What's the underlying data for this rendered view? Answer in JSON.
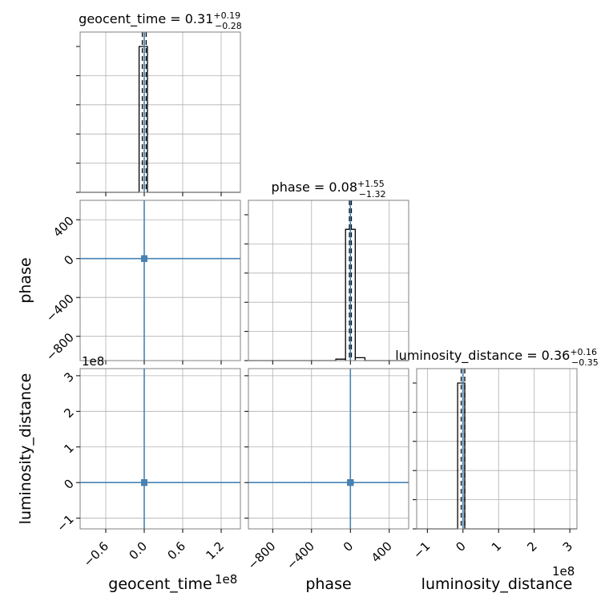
{
  "chart_data": {
    "type": "scatter",
    "kind": "corner-plot",
    "parameters": [
      "geocent_time",
      "phase",
      "luminosity_distance"
    ],
    "axis_labels": [
      "geocent_time",
      "phase",
      "luminosity_distance"
    ],
    "titles": [
      {
        "param": "geocent_time",
        "text": "geocent_time = 0.31",
        "upper": "+0.19",
        "lower": "−0.28"
      },
      {
        "param": "phase",
        "text": "phase = 0.08",
        "upper": "+1.55",
        "lower": "−1.32"
      },
      {
        "param": "luminosity_distance",
        "text": "luminosity_distance = 0.36",
        "upper": "+0.16",
        "lower": "−0.35"
      }
    ],
    "ranges": [
      [
        -1.0,
        1.5
      ],
      [
        -1050,
        600
      ],
      [
        -1.3,
        3.2
      ]
    ],
    "ticks": [
      {
        "values": [
          -0.6,
          0.0,
          0.6,
          1.2
        ],
        "labels": [
          "−0.6",
          "0.0",
          "0.6",
          "1.2"
        ]
      },
      {
        "values": [
          -800,
          -400,
          0,
          400
        ],
        "labels": [
          "−800",
          "−400",
          "0",
          "400"
        ]
      },
      {
        "values": [
          -1,
          0,
          1,
          2,
          3
        ],
        "labels": [
          "−1",
          "0",
          "1",
          "2",
          "3"
        ]
      }
    ],
    "offset_text": "1e8",
    "truths": [
      0.0,
      0.0,
      0.0
    ],
    "histograms": [
      {
        "param": "geocent_time",
        "bins": [
          [
            -0.08,
            0.05,
            1.0
          ]
        ],
        "quantiles": [
          -0.03,
          0.0,
          0.03
        ]
      },
      {
        "param": "phase",
        "bins": [
          [
            -150,
            -50,
            0.01
          ],
          [
            -50,
            50,
            0.9
          ],
          [
            50,
            150,
            0.02
          ]
        ],
        "quantiles": [
          -10,
          0,
          10
        ]
      },
      {
        "param": "luminosity_distance",
        "bins": [
          [
            -0.15,
            0.05,
            1.0
          ]
        ],
        "quantiles": [
          -0.05,
          0.0,
          0.05
        ]
      }
    ],
    "point_clusters": [
      {
        "x_param": "geocent_time",
        "y_param": "phase",
        "x": 0.0,
        "y": 0
      },
      {
        "x_param": "geocent_time",
        "y_param": "luminosity_distance",
        "x": 0.0,
        "y": 0.0
      },
      {
        "x_param": "phase",
        "y_param": "luminosity_distance",
        "x": 0,
        "y": 0.0
      }
    ],
    "grid": true,
    "truth_color": "#4682b4"
  }
}
